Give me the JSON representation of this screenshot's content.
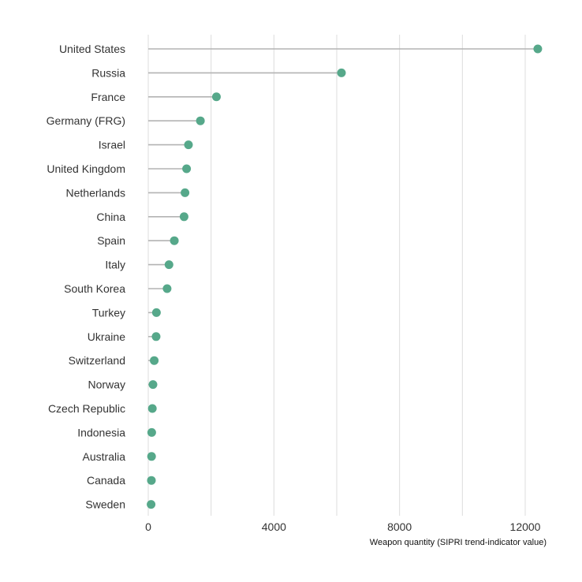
{
  "chart_data": {
    "type": "lollipop",
    "orientation": "horizontal",
    "title": "",
    "xlabel": "Weapon quantity (SIPRI trend-indicator value)",
    "ylabel": "",
    "xlim": [
      0,
      13000
    ],
    "xticks": [
      0,
      4000,
      8000,
      12000
    ],
    "grid_x": true,
    "grid_y": false,
    "legend": "none",
    "point_color": "#56a88a",
    "stem_color": "#b3b3b3",
    "grid_color": "#dcdcdc",
    "categories": [
      "United States",
      "Russia",
      "France",
      "Germany (FRG)",
      "Israel",
      "United Kingdom",
      "Netherlands",
      "China",
      "Spain",
      "Italy",
      "South Korea",
      "Turkey",
      "Ukraine",
      "Switzerland",
      "Norway",
      "Czech Republic",
      "Indonesia",
      "Australia",
      "Canada",
      "Sweden"
    ],
    "values": [
      12400,
      6150,
      2170,
      1660,
      1280,
      1220,
      1170,
      1140,
      830,
      660,
      600,
      260,
      250,
      190,
      150,
      130,
      110,
      105,
      100,
      90
    ]
  }
}
